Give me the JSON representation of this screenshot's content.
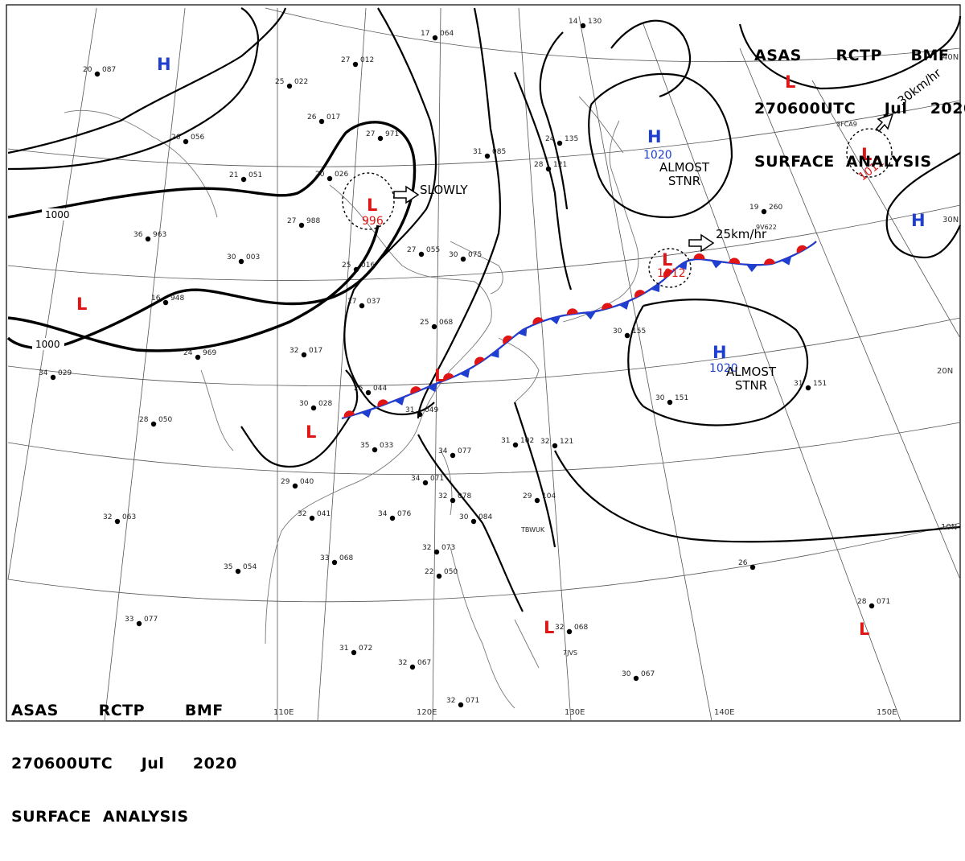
{
  "header_top_right": {
    "line1": "ASAS      RCTP     BMF",
    "line2": "270600UTC     Jul    2020",
    "line3": "SURFACE  ANALYSIS"
  },
  "header_bottom_left": {
    "line1": "ASAS       RCTP       BMF",
    "line2": "270600UTC     Jul     2020",
    "line3": "SURFACE  ANALYSIS"
  },
  "longitude_labels": [
    "110E",
    "120E",
    "130E",
    "140E",
    "150E"
  ],
  "latitude_labels": [
    "40N",
    "30N",
    "20N",
    "10N"
  ],
  "isobar_labels": [
    "1000",
    "1000"
  ],
  "pressure_systems": [
    {
      "id": "h-northwest",
      "type": "H",
      "value": "",
      "note": "",
      "color": "#1f3fd1"
    },
    {
      "id": "l-west",
      "type": "L",
      "value": "",
      "note": "",
      "color": "#e01515"
    },
    {
      "id": "l-north-china",
      "type": "L",
      "value": "996",
      "note": "SLOWLY",
      "color": "#e01515"
    },
    {
      "id": "l-south-china",
      "type": "L",
      "value": "",
      "note": "",
      "color": "#e01515"
    },
    {
      "id": "l-yellow-sea",
      "type": "L",
      "value": "",
      "note": "",
      "color": "#e01515"
    },
    {
      "id": "h-japan-sea",
      "type": "H",
      "value": "1020",
      "note": "ALMOST STNR",
      "color": "#1f3fd1"
    },
    {
      "id": "l-japan-coast",
      "type": "L",
      "value": "1012",
      "note": "25km/hr",
      "color": "#e01515"
    },
    {
      "id": "l-northeast",
      "type": "L",
      "value": "1012",
      "note": "30km/hr",
      "color": "#e01515"
    },
    {
      "id": "l-top-right",
      "type": "L",
      "value": "",
      "note": "",
      "color": "#e01515"
    },
    {
      "id": "h-east",
      "type": "H",
      "value": "",
      "note": "",
      "color": "#1f3fd1"
    },
    {
      "id": "h-pacific",
      "type": "H",
      "value": "1020",
      "note": "ALMOST STNR",
      "color": "#1f3fd1"
    },
    {
      "id": "l-philippine-sea",
      "type": "L",
      "value": "",
      "note": "",
      "color": "#e01515"
    },
    {
      "id": "l-bottom-right",
      "type": "L",
      "value": "",
      "note": "",
      "color": "#e01515"
    }
  ],
  "front": {
    "type": "stationary",
    "warm_color": "#e01515",
    "cold_color": "#1f3fd1"
  },
  "station_plots": [
    {
      "t": "20",
      "p": "087"
    },
    {
      "t": "27",
      "p": "012"
    },
    {
      "t": "25",
      "p": "022"
    },
    {
      "t": "17",
      "p": "064"
    },
    {
      "t": "14",
      "p": "130"
    },
    {
      "t": "26",
      "p": "017"
    },
    {
      "t": "27",
      "p": "971"
    },
    {
      "t": "26",
      "p": "056"
    },
    {
      "t": "21",
      "p": "051"
    },
    {
      "t": "20",
      "p": "026"
    },
    {
      "t": "27",
      "p": "988"
    },
    {
      "t": "36",
      "p": "963"
    },
    {
      "t": "30",
      "p": "003"
    },
    {
      "t": "25",
      "p": "016"
    },
    {
      "t": "27",
      "p": "055"
    },
    {
      "t": "30",
      "p": "075"
    },
    {
      "t": "31",
      "p": "085"
    },
    {
      "t": "28",
      "p": "121"
    },
    {
      "t": "24",
      "p": "135"
    },
    {
      "t": "19",
      "p": "260"
    },
    {
      "t": "16",
      "p": "948"
    },
    {
      "t": "27",
      "p": "037"
    },
    {
      "t": "24",
      "p": "969"
    },
    {
      "t": "32",
      "p": "017"
    },
    {
      "t": "34",
      "p": "029"
    },
    {
      "t": "25",
      "p": "068"
    },
    {
      "t": "25",
      "p": "044"
    },
    {
      "t": "30",
      "p": "028"
    },
    {
      "t": "31",
      "p": "049"
    },
    {
      "t": "28",
      "p": "050"
    },
    {
      "t": "35",
      "p": "033"
    },
    {
      "t": "34",
      "p": "077"
    },
    {
      "t": "31",
      "p": "102"
    },
    {
      "t": "32",
      "p": "121"
    },
    {
      "t": "30",
      "p": "151"
    },
    {
      "t": "30",
      "p": "155"
    },
    {
      "t": "31",
      "p": "151"
    },
    {
      "t": "29",
      "p": "040"
    },
    {
      "t": "32",
      "p": "041"
    },
    {
      "t": "34",
      "p": "076"
    },
    {
      "t": "34",
      "p": "071"
    },
    {
      "t": "32",
      "p": "078"
    },
    {
      "t": "30",
      "p": "084"
    },
    {
      "t": "29",
      "p": "104"
    },
    {
      "t": "32",
      "p": "063"
    },
    {
      "t": "33",
      "p": "068"
    },
    {
      "t": "35",
      "p": "054"
    },
    {
      "t": "32",
      "p": "073"
    },
    {
      "t": "22",
      "p": "050"
    },
    {
      "t": "33",
      "p": "077"
    },
    {
      "t": "31",
      "p": "072"
    },
    {
      "t": "32",
      "p": "067"
    },
    {
      "t": "32",
      "p": "071"
    },
    {
      "t": "32",
      "p": "068"
    },
    {
      "t": "28",
      "p": "071"
    },
    {
      "t": "30",
      "p": "067"
    },
    {
      "t": "26",
      "p": ""
    }
  ],
  "ship_ids": [
    "9V622",
    "3FCA9",
    "TBWUK",
    "7JVS"
  ]
}
